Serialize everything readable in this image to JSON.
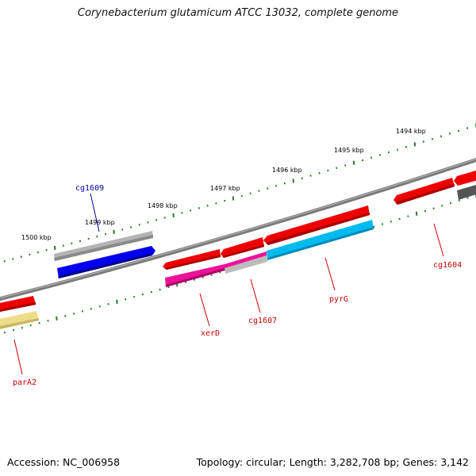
{
  "title": "Corynebacterium glutamicum ATCC 13032, complete genome",
  "footer": {
    "accession": "Accession: NC_006958",
    "summary": "Topology: circular; Length: 3,282,708 bp; Genes: 3,142"
  },
  "axis": {
    "ticks": [
      "1494 kbp",
      "1495 kbp",
      "1496 kbp",
      "1497 kbp",
      "1498 kbp",
      "1499 kbp",
      "1500 kbp"
    ]
  },
  "genes": {
    "labels": [
      "cg1609",
      "xerD",
      "cg1607",
      "pyrG",
      "cg1604",
      "parA2"
    ]
  },
  "colors": {
    "backbone": "#808080",
    "tick": "#2a7a2a",
    "label_red": "#cc0000",
    "label_blue": "#000099",
    "gene_red": "#ee0000",
    "gene_blue": "#0000ee",
    "gene_cyan": "#00bbee",
    "gene_magenta": "#ee1199",
    "gene_gray": "#b8b8b8",
    "gene_dark": "#555555",
    "gene_yellow": "#eedd88"
  }
}
